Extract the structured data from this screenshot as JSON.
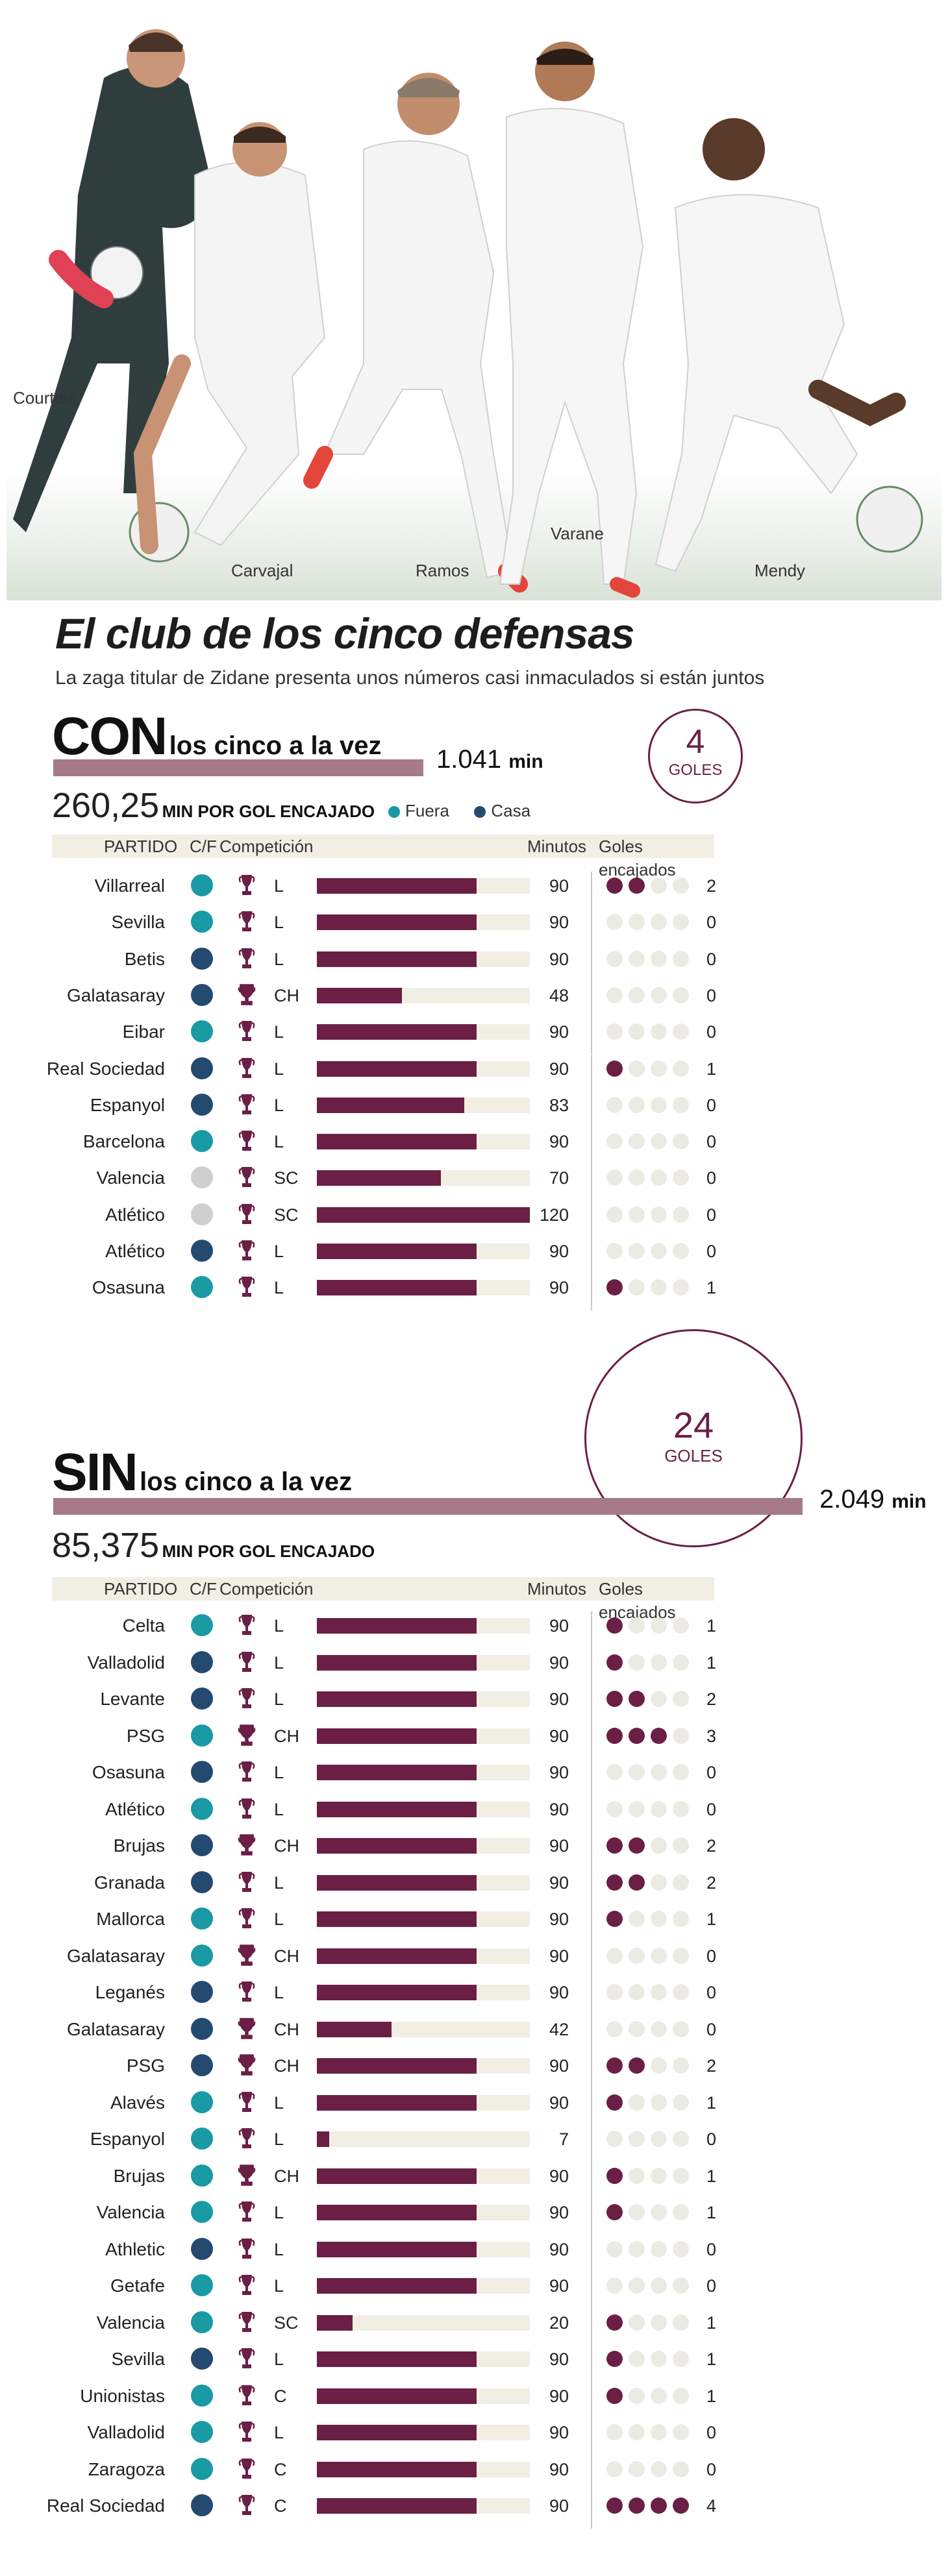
{
  "colors": {
    "fuera": "#199aa5",
    "casa": "#244a70",
    "neutral": "#cfcfcf",
    "accent": "#6b1f45",
    "bar_light": "#a77a89",
    "track": "#f1eee4",
    "goal_empty": "#ecebe3"
  },
  "players": {
    "courtois": "Courtois",
    "carvajal": "Carvajal",
    "ramos": "Ramos",
    "varane": "Varane",
    "mendy": "Mendy"
  },
  "header": {
    "title": "El club de los cinco defensas",
    "subtitle": "La zaga titular de Zidane presenta unos números casi inmaculados si están juntos"
  },
  "legend": {
    "fuera": "Fuera",
    "casa": "Casa"
  },
  "columns": {
    "partido": "PARTIDO",
    "cf": "C/F",
    "competicion": "Competición",
    "minutos": "Minutos",
    "goles": "Goles encajados"
  },
  "chart_data": [
    {
      "type": "bar",
      "title": "CON",
      "subtitle": "los cinco a la vez",
      "total_minutes": "1.041",
      "minutes_unit": "min",
      "ratio": "260,25",
      "ratio_label": "MIN POR GOL ENCAJADO",
      "goals_total": "4",
      "goals_label": "GOLES",
      "rows": [
        {
          "team": "Villarreal",
          "venue": "fuera",
          "comp": "L",
          "minutes": 90,
          "goals": 2
        },
        {
          "team": "Sevilla",
          "venue": "fuera",
          "comp": "L",
          "minutes": 90,
          "goals": 0
        },
        {
          "team": "Betis",
          "venue": "casa",
          "comp": "L",
          "minutes": 90,
          "goals": 0
        },
        {
          "team": "Galatasaray",
          "venue": "casa",
          "comp": "CH",
          "minutes": 48,
          "goals": 0
        },
        {
          "team": "Eibar",
          "venue": "fuera",
          "comp": "L",
          "minutes": 90,
          "goals": 0
        },
        {
          "team": "Real Sociedad",
          "venue": "casa",
          "comp": "L",
          "minutes": 90,
          "goals": 1
        },
        {
          "team": "Espanyol",
          "venue": "casa",
          "comp": "L",
          "minutes": 83,
          "goals": 0
        },
        {
          "team": "Barcelona",
          "venue": "fuera",
          "comp": "L",
          "minutes": 90,
          "goals": 0
        },
        {
          "team": "Valencia",
          "venue": "neutral",
          "comp": "SC",
          "minutes": 70,
          "goals": 0
        },
        {
          "team": "Atlético",
          "venue": "neutral",
          "comp": "SC",
          "minutes": 120,
          "goals": 0
        },
        {
          "team": "Atlético",
          "venue": "casa",
          "comp": "L",
          "minutes": 90,
          "goals": 0
        },
        {
          "team": "Osasuna",
          "venue": "fuera",
          "comp": "L",
          "minutes": 90,
          "goals": 1
        }
      ]
    },
    {
      "type": "bar",
      "title": "SIN",
      "subtitle": "los cinco a la vez",
      "total_minutes": "2.049",
      "minutes_unit": "min",
      "ratio": "85,375",
      "ratio_label": "MIN POR GOL ENCAJADO",
      "goals_total": "24",
      "goals_label": "GOLES",
      "rows": [
        {
          "team": "Celta",
          "venue": "fuera",
          "comp": "L",
          "minutes": 90,
          "goals": 1
        },
        {
          "team": "Valladolid",
          "venue": "casa",
          "comp": "L",
          "minutes": 90,
          "goals": 1
        },
        {
          "team": "Levante",
          "venue": "casa",
          "comp": "L",
          "minutes": 90,
          "goals": 2
        },
        {
          "team": "PSG",
          "venue": "fuera",
          "comp": "CH",
          "minutes": 90,
          "goals": 3
        },
        {
          "team": "Osasuna",
          "venue": "casa",
          "comp": "L",
          "minutes": 90,
          "goals": 0
        },
        {
          "team": "Atlético",
          "venue": "fuera",
          "comp": "L",
          "minutes": 90,
          "goals": 0
        },
        {
          "team": "Brujas",
          "venue": "casa",
          "comp": "CH",
          "minutes": 90,
          "goals": 2
        },
        {
          "team": "Granada",
          "venue": "casa",
          "comp": "L",
          "minutes": 90,
          "goals": 2
        },
        {
          "team": "Mallorca",
          "venue": "fuera",
          "comp": "L",
          "minutes": 90,
          "goals": 1
        },
        {
          "team": "Galatasaray",
          "venue": "fuera",
          "comp": "CH",
          "minutes": 90,
          "goals": 0
        },
        {
          "team": "Leganés",
          "venue": "casa",
          "comp": "L",
          "minutes": 90,
          "goals": 0
        },
        {
          "team": "Galatasaray",
          "venue": "casa",
          "comp": "CH",
          "minutes": 42,
          "goals": 0
        },
        {
          "team": "PSG",
          "venue": "casa",
          "comp": "CH",
          "minutes": 90,
          "goals": 2
        },
        {
          "team": "Alavés",
          "venue": "fuera",
          "comp": "L",
          "minutes": 90,
          "goals": 1
        },
        {
          "team": "Espanyol",
          "venue": "fuera",
          "comp": "L",
          "minutes": 7,
          "goals": 0
        },
        {
          "team": "Brujas",
          "venue": "fuera",
          "comp": "CH",
          "minutes": 90,
          "goals": 1
        },
        {
          "team": "Valencia",
          "venue": "fuera",
          "comp": "L",
          "minutes": 90,
          "goals": 1
        },
        {
          "team": "Athletic",
          "venue": "casa",
          "comp": "L",
          "minutes": 90,
          "goals": 0
        },
        {
          "team": "Getafe",
          "venue": "fuera",
          "comp": "L",
          "minutes": 90,
          "goals": 0
        },
        {
          "team": "Valencia",
          "venue": "fuera",
          "comp": "SC",
          "minutes": 20,
          "goals": 1
        },
        {
          "team": "Sevilla",
          "venue": "casa",
          "comp": "L",
          "minutes": 90,
          "goals": 1
        },
        {
          "team": "Unionistas",
          "venue": "fuera",
          "comp": "C",
          "minutes": 90,
          "goals": 1
        },
        {
          "team": "Valladolid",
          "venue": "fuera",
          "comp": "L",
          "minutes": 90,
          "goals": 0
        },
        {
          "team": "Zaragoza",
          "venue": "fuera",
          "comp": "C",
          "minutes": 90,
          "goals": 0
        },
        {
          "team": "Real Sociedad",
          "venue": "casa",
          "comp": "C",
          "minutes": 90,
          "goals": 4
        }
      ]
    }
  ]
}
